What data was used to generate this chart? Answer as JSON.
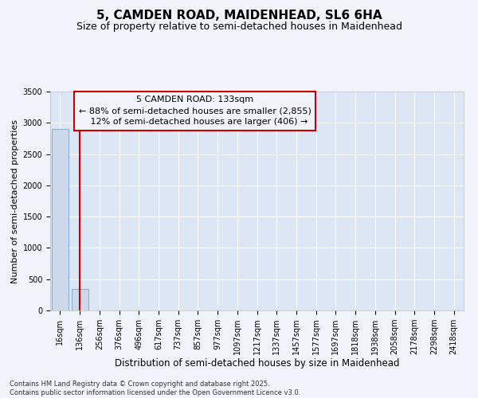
{
  "title_line1": "5, CAMDEN ROAD, MAIDENHEAD, SL6 6HA",
  "title_line2": "Size of property relative to semi-detached houses in Maidenhead",
  "xlabel": "Distribution of semi-detached houses by size in Maidenhead",
  "ylabel": "Number of semi-detached properties",
  "categories": [
    "16sqm",
    "136sqm",
    "256sqm",
    "376sqm",
    "496sqm",
    "617sqm",
    "737sqm",
    "857sqm",
    "977sqm",
    "1097sqm",
    "1217sqm",
    "1337sqm",
    "1457sqm",
    "1577sqm",
    "1697sqm",
    "1818sqm",
    "1938sqm",
    "2058sqm",
    "2178sqm",
    "2298sqm",
    "2418sqm"
  ],
  "values": [
    2900,
    350,
    5,
    0,
    0,
    0,
    0,
    0,
    0,
    0,
    0,
    0,
    0,
    0,
    0,
    0,
    0,
    0,
    0,
    0,
    0
  ],
  "bar_color": "#ccd9ed",
  "bar_edge_color": "#7aa3cc",
  "ylim": [
    0,
    3500
  ],
  "yticks": [
    0,
    500,
    1000,
    1500,
    2000,
    2500,
    3000,
    3500
  ],
  "vline_x": 1,
  "vline_color": "#cc0000",
  "annotation_line1": "5 CAMDEN ROAD: 133sqm",
  "annotation_line2": "← 88% of semi-detached houses are smaller (2,855)",
  "annotation_line3": "   12% of semi-detached houses are larger (406) →",
  "annotation_box_color": "#cc0000",
  "plot_bg_color": "#dce6f5",
  "fig_bg_color": "#f0f4fa",
  "grid_color": "#ffffff",
  "footer": "Contains HM Land Registry data © Crown copyright and database right 2025.\nContains public sector information licensed under the Open Government Licence v3.0.",
  "title_fontsize": 11,
  "subtitle_fontsize": 9,
  "annotation_fontsize": 8,
  "ylabel_fontsize": 8,
  "xlabel_fontsize": 8.5,
  "tick_fontsize": 7,
  "footer_fontsize": 6
}
